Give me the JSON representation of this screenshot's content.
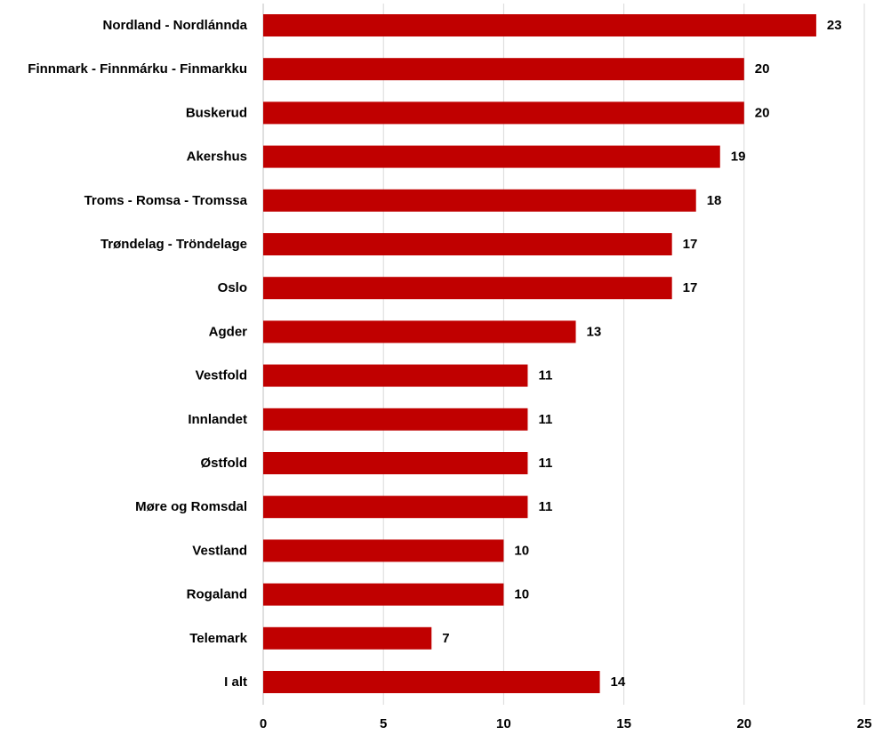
{
  "chart_data": {
    "type": "bar",
    "orientation": "horizontal",
    "title": "",
    "xlabel": "",
    "ylabel": "",
    "categories": [
      "Nordland - Nordlánnda",
      "Finnmark - Finnmárku - Finmarkku",
      "Buskerud",
      "Akershus",
      "Troms - Romsa - Tromssa",
      "Trøndelag - Tröndelage",
      "Oslo",
      "Agder",
      "Vestfold",
      "Innlandet",
      "Østfold",
      "Møre og Romsdal",
      "Vestland",
      "Rogaland",
      "Telemark",
      "I alt"
    ],
    "values": [
      23,
      20,
      20,
      19,
      18,
      17,
      17,
      13,
      11,
      11,
      11,
      11,
      10,
      10,
      7,
      14
    ],
    "xlim": [
      0,
      25
    ],
    "x_ticks": [
      0,
      5,
      10,
      15,
      20,
      25
    ],
    "grid": "vertical",
    "legend": "none",
    "bar_color": "#c00000",
    "data_labels": true
  }
}
